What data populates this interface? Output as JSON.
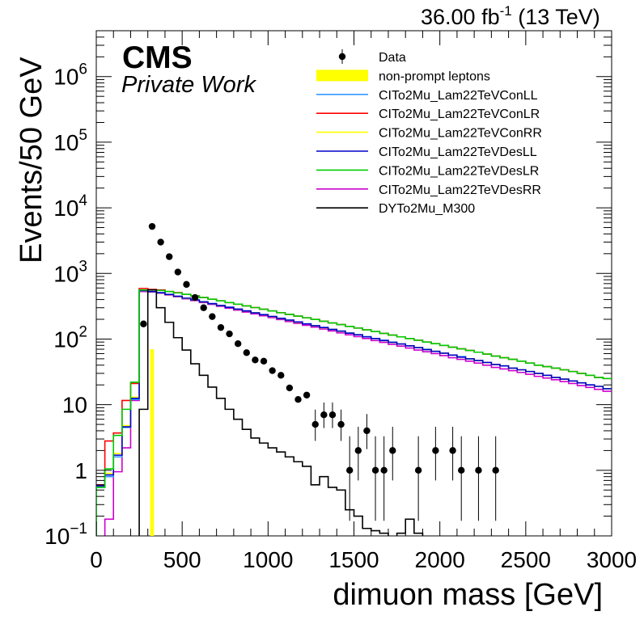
{
  "header": {
    "lumi_value": "36.00 fb",
    "lumi_exponent": "-1",
    "energy": "(13 TeV)"
  },
  "labels": {
    "cms": "CMS",
    "private": "Private Work"
  },
  "chart_data": {
    "type": "line",
    "title": "",
    "xlabel": "dimuon mass [GeV]",
    "ylabel": "Events/50 GeV",
    "xlim": [
      0,
      3000
    ],
    "ylim": [
      0.1,
      5000000
    ],
    "yscale": "log",
    "grid": false,
    "legend_position": "top-right",
    "x_tick_labels": [
      "0",
      "500",
      "1000",
      "1500",
      "2000",
      "2500",
      "3000"
    ],
    "y_tick_labels": [
      {
        "value": 0.1,
        "base": "10",
        "exp": "−1"
      },
      {
        "value": 1,
        "base": "1",
        "exp": ""
      },
      {
        "value": 10,
        "base": "10",
        "exp": ""
      },
      {
        "value": 100,
        "base": "10",
        "exp": "2"
      },
      {
        "value": 1000,
        "base": "10",
        "exp": "3"
      },
      {
        "value": 10000,
        "base": "10",
        "exp": "4"
      },
      {
        "value": 100000,
        "base": "10",
        "exp": "5"
      },
      {
        "value": 1000000,
        "base": "10",
        "exp": "6"
      }
    ],
    "legend": [
      {
        "label": "Data",
        "kind": "marker"
      },
      {
        "label": "non-prompt leptons",
        "kind": "fill"
      },
      {
        "label": "CITo2Mu_Lam22TeVConLL",
        "kind": "line"
      },
      {
        "label": "CITo2Mu_Lam22TeVConLR",
        "kind": "line"
      },
      {
        "label": "CITo2Mu_Lam22TeVConRR",
        "kind": "line"
      },
      {
        "label": "CITo2Mu_Lam22TeVDesLL",
        "kind": "line"
      },
      {
        "label": "CITo2Mu_Lam22TeVDesLR",
        "kind": "line"
      },
      {
        "label": "CITo2Mu_Lam22TeVDesRR",
        "kind": "line"
      },
      {
        "label": "DYTo2Mu_M300",
        "kind": "line"
      }
    ],
    "colors": {
      "data": "#000000",
      "nonprompt": "#ffff00",
      "ConLL": "#3399ff",
      "ConLR": "#ff0000",
      "ConRR": "#ffff00",
      "DesLL": "#0000cc",
      "DesLR": "#00cc00",
      "DesRR": "#cc00cc",
      "DY": "#000000"
    },
    "bin_width": 50,
    "nonprompt": {
      "x_low": 300,
      "x_high": 350,
      "value": 70
    },
    "data_points": [
      {
        "x": 275,
        "y": 170,
        "err_low": 0,
        "err_high": 0
      },
      {
        "x": 325,
        "y": 5200,
        "err_low": 0,
        "err_high": 0
      },
      {
        "x": 375,
        "y": 3000,
        "err_low": 0,
        "err_high": 0
      },
      {
        "x": 425,
        "y": 1800,
        "err_low": 0,
        "err_high": 0
      },
      {
        "x": 475,
        "y": 1050,
        "err_low": 0,
        "err_high": 0
      },
      {
        "x": 525,
        "y": 680,
        "err_low": 0,
        "err_high": 0
      },
      {
        "x": 575,
        "y": 430,
        "err_low": 0,
        "err_high": 0
      },
      {
        "x": 625,
        "y": 300,
        "err_low": 0,
        "err_high": 0
      },
      {
        "x": 675,
        "y": 220,
        "err_low": 0,
        "err_high": 0
      },
      {
        "x": 725,
        "y": 150,
        "err_low": 0,
        "err_high": 0
      },
      {
        "x": 775,
        "y": 120,
        "err_low": 0,
        "err_high": 0
      },
      {
        "x": 825,
        "y": 85,
        "err_low": 0,
        "err_high": 0
      },
      {
        "x": 875,
        "y": 62,
        "err_low": 0,
        "err_high": 0
      },
      {
        "x": 925,
        "y": 48,
        "err_low": 0,
        "err_high": 0
      },
      {
        "x": 975,
        "y": 46,
        "err_low": 0,
        "err_high": 0
      },
      {
        "x": 1025,
        "y": 33,
        "err_low": 0,
        "err_high": 0
      },
      {
        "x": 1075,
        "y": 28,
        "err_low": 0,
        "err_high": 0
      },
      {
        "x": 1125,
        "y": 18,
        "err_low": 0,
        "err_high": 0
      },
      {
        "x": 1175,
        "y": 12,
        "err_low": 0,
        "err_high": 0
      },
      {
        "x": 1225,
        "y": 14,
        "err_low": 0,
        "err_high": 0
      },
      {
        "x": 1275,
        "y": 5,
        "err_low": 2.2,
        "err_high": 3.4
      },
      {
        "x": 1325,
        "y": 7,
        "err_low": 2.6,
        "err_high": 3.8
      },
      {
        "x": 1375,
        "y": 7,
        "err_low": 2.6,
        "err_high": 3.8
      },
      {
        "x": 1425,
        "y": 5,
        "err_low": 2.2,
        "err_high": 3.4
      },
      {
        "x": 1475,
        "y": 1,
        "err_low": 0.83,
        "err_high": 2.3
      },
      {
        "x": 1525,
        "y": 2,
        "err_low": 1.3,
        "err_high": 2.6
      },
      {
        "x": 1575,
        "y": 4,
        "err_low": 1.9,
        "err_high": 3.2
      },
      {
        "x": 1625,
        "y": 1,
        "err_low": 0.83,
        "err_high": 2.3
      },
      {
        "x": 1675,
        "y": 1,
        "err_low": 0.83,
        "err_high": 2.3
      },
      {
        "x": 1725,
        "y": 2,
        "err_low": 1.3,
        "err_high": 2.6
      },
      {
        "x": 1875,
        "y": 1,
        "err_low": 0.83,
        "err_high": 2.3
      },
      {
        "x": 1975,
        "y": 2,
        "err_low": 1.3,
        "err_high": 2.6
      },
      {
        "x": 2075,
        "y": 2,
        "err_low": 1.3,
        "err_high": 2.6
      },
      {
        "x": 2125,
        "y": 1,
        "err_low": 0.83,
        "err_high": 2.3
      },
      {
        "x": 2225,
        "y": 1,
        "err_low": 0.83,
        "err_high": 2.3
      },
      {
        "x": 2325,
        "y": 1,
        "err_low": 0.83,
        "err_high": 2.3
      }
    ],
    "series": [
      {
        "key": "DesRR",
        "start": 0,
        "values": [
          0.06,
          0.18,
          0.95,
          2.2,
          11.6,
          530,
          520,
          500,
          470,
          440,
          410,
          385,
          360,
          337,
          315,
          295,
          276,
          258,
          242,
          226,
          212,
          198,
          185,
          173,
          162,
          152,
          142,
          133,
          124,
          116,
          109,
          102,
          95,
          89,
          83,
          78,
          73,
          68,
          64,
          60,
          56,
          52,
          49,
          46,
          43,
          40,
          37,
          35,
          33,
          31,
          29,
          27,
          25.5,
          24,
          22.5,
          21,
          19.5,
          18.3,
          17.1,
          16
        ]
      },
      {
        "key": "ConLR",
        "start": 0,
        "values": [
          0.6,
          2.8,
          3.7,
          11.6,
          21,
          590,
          570,
          560,
          530,
          510,
          480,
          455,
          430,
          405,
          382,
          360,
          340,
          320,
          302,
          285,
          268,
          252,
          238,
          224,
          211,
          199,
          187,
          176,
          166,
          156,
          147,
          138,
          130,
          122,
          115,
          108,
          102,
          96,
          90,
          85,
          80,
          75,
          71,
          67,
          63,
          59,
          55,
          52,
          49,
          46,
          43,
          40,
          38,
          36,
          34,
          32,
          30,
          28,
          26,
          25
        ]
      },
      {
        "key": "ConLL",
        "start": 0,
        "values": [
          0.55,
          0.8,
          1.6,
          4.5,
          12,
          550,
          530,
          510,
          480,
          450,
          420,
          395,
          370,
          347,
          326,
          306,
          287,
          269,
          252,
          236,
          221,
          207,
          194,
          182,
          171,
          160,
          150,
          141,
          132,
          124,
          116,
          109,
          102,
          96,
          90,
          84,
          79,
          74,
          70,
          65,
          61,
          57,
          54,
          50,
          47,
          44,
          41,
          39,
          36,
          34,
          32,
          30,
          28,
          26,
          24.5,
          23,
          21.5,
          20,
          19,
          17.5
        ]
      },
      {
        "key": "ConRR",
        "start": 0,
        "values": [
          0.58,
          0.9,
          1.8,
          4.8,
          13,
          540,
          525,
          505,
          476,
          447,
          418,
          392,
          368,
          345,
          324,
          304,
          285,
          267,
          251,
          235,
          220,
          206,
          193,
          181,
          170,
          159,
          149,
          140,
          131,
          123,
          116,
          108,
          102,
          95,
          89,
          84,
          79,
          74,
          69,
          65,
          61,
          57,
          53,
          50,
          47,
          44,
          41,
          39,
          36,
          34,
          32,
          30,
          28,
          26,
          24.5,
          23,
          21.5,
          20,
          19,
          17.5
        ]
      },
      {
        "key": "DesLL",
        "start": 0,
        "values": [
          0.58,
          0.85,
          1.7,
          4.6,
          12.5,
          545,
          528,
          508,
          478,
          449,
          420,
          394,
          369,
          346,
          325,
          305,
          286,
          268,
          251,
          235,
          221,
          207,
          194,
          182,
          170,
          160,
          150,
          140,
          132,
          123,
          116,
          108,
          102,
          95,
          89,
          84,
          79,
          74,
          69,
          65,
          61,
          57,
          53,
          50,
          47,
          44,
          41,
          39,
          36,
          34,
          32,
          30,
          28,
          26,
          24.5,
          23,
          21.5,
          20,
          19,
          17.5
        ]
      },
      {
        "key": "DesLR",
        "start": 0,
        "values": [
          0.55,
          1.05,
          3.4,
          8.5,
          22,
          560,
          560,
          550,
          530,
          505,
          480,
          455,
          430,
          405,
          382,
          360,
          340,
          320,
          302,
          285,
          268,
          252,
          238,
          224,
          211,
          199,
          187,
          176,
          166,
          156,
          147,
          138,
          130,
          122,
          115,
          108,
          102,
          96,
          90,
          85,
          80,
          75,
          71,
          67,
          63,
          59,
          55,
          52,
          49,
          46,
          43,
          40,
          38,
          36,
          34,
          32,
          30,
          28,
          26,
          25
        ]
      },
      {
        "key": "DY",
        "start": 250,
        "values": [
          8.5,
          560,
          300,
          180,
          105,
          68,
          42,
          28,
          18.5,
          12.5,
          8.5,
          6,
          4.2,
          3.1,
          2.6,
          2.2,
          1.9,
          1.6,
          1.35,
          1.15,
          0.6,
          0.8,
          0.55,
          0.5,
          0.25,
          0.2,
          0.13,
          0.12,
          0.11,
          0.085,
          0.11,
          0.18,
          0.11,
          0.07
        ]
      }
    ]
  }
}
